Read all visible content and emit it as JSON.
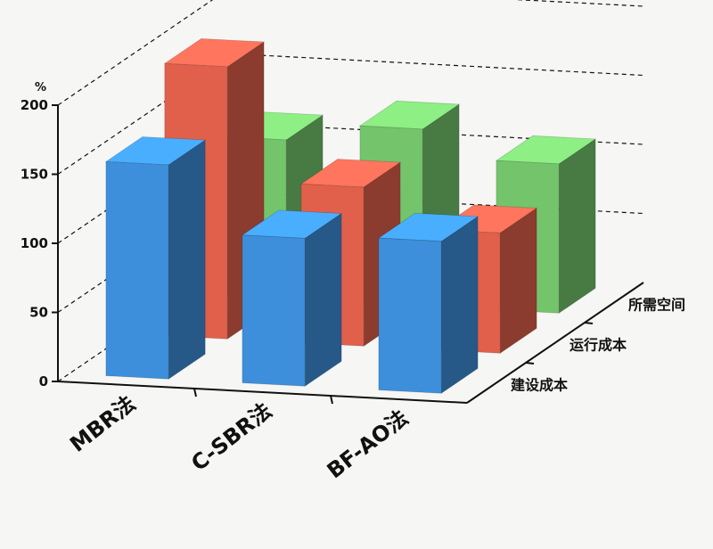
{
  "chart_data": {
    "type": "bar",
    "subtype": "3d-grouped",
    "unit": "%",
    "categories": [
      "MBR法",
      "C-SBR法",
      "BF-AO法"
    ],
    "series": [
      {
        "name": "建设成本",
        "color": "#3d8fdb",
        "values": [
          155,
          107,
          110
        ]
      },
      {
        "name": "运行成本",
        "color": "#e0604c",
        "values": [
          197,
          115,
          87
        ]
      },
      {
        "name": "所需空间",
        "color": "#74c46c",
        "values": [
          115,
          128,
          108
        ]
      }
    ],
    "ylim": [
      0,
      200
    ],
    "yticks": [
      0,
      50,
      100,
      150,
      200
    ],
    "grid": true
  }
}
